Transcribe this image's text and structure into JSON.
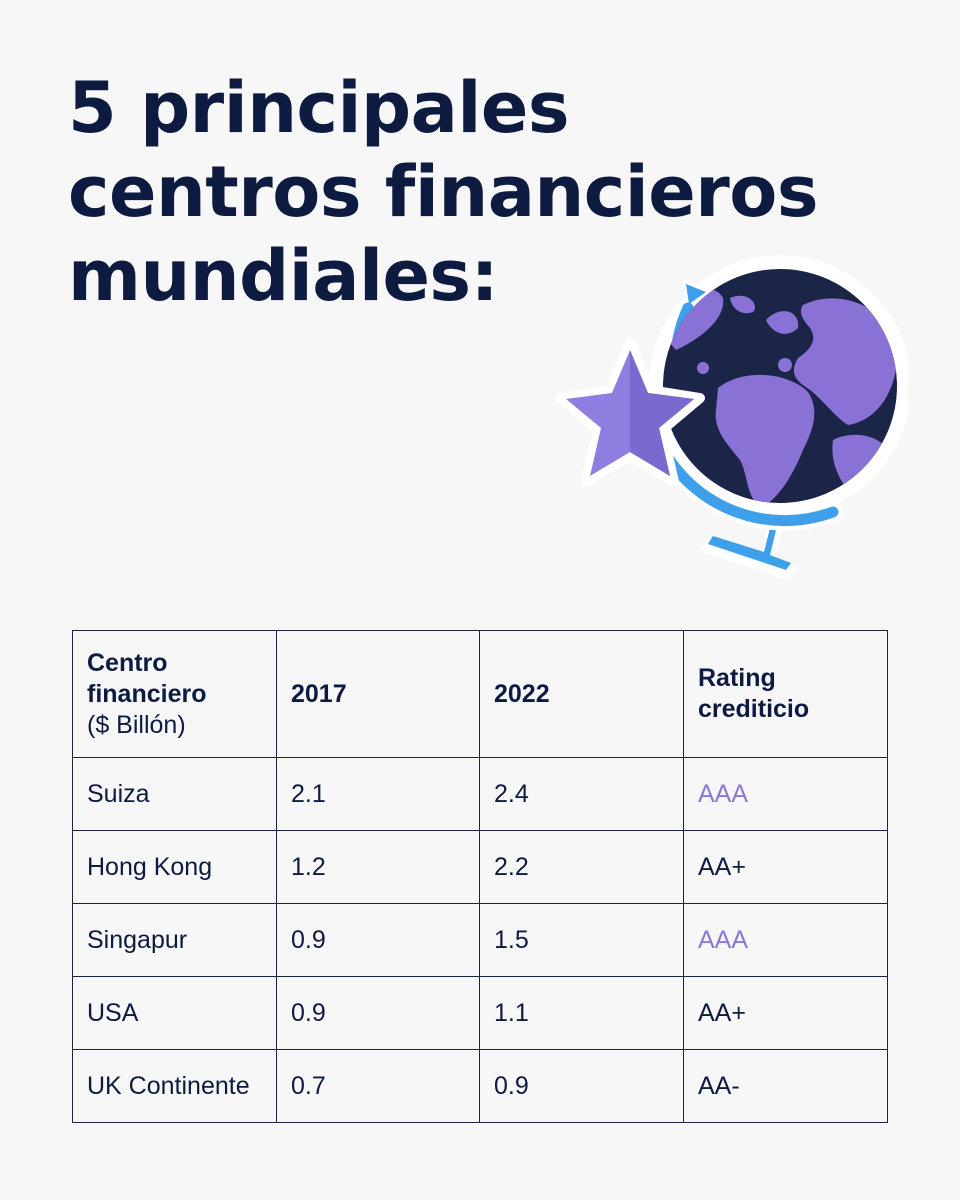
{
  "title": {
    "lines": [
      "5 principales",
      "centros financieros",
      "mundiales:"
    ]
  },
  "illustration": {
    "icon": "globe-with-star-icon",
    "colors": {
      "ocean": "#1a2547",
      "land": "#8a71d6",
      "stand": "#3ea0ea",
      "star": "#8f7ee0"
    }
  },
  "table": {
    "headers": {
      "center": "Centro financiero",
      "center_sub": "($ Billón)",
      "y2017": "2017",
      "y2022": "2022",
      "rating": "Rating crediticio"
    },
    "rows": [
      {
        "center": "Suiza",
        "y2017": "2.1",
        "y2022": "2.4",
        "rating": "AAA",
        "highlight": true
      },
      {
        "center": "Hong Kong",
        "y2017": "1.2",
        "y2022": "2.2",
        "rating": "AA+",
        "highlight": false
      },
      {
        "center": "Singapur",
        "y2017": "0.9",
        "y2022": "1.5",
        "rating": "AAA",
        "highlight": true
      },
      {
        "center": "USA",
        "y2017": "0.9",
        "y2022": "1.1",
        "rating": "AA+",
        "highlight": false
      },
      {
        "center": "UK Continente",
        "y2017": "0.7",
        "y2022": "0.9",
        "rating": "AA-",
        "highlight": false
      }
    ],
    "accent_color": "#8c78d9"
  }
}
